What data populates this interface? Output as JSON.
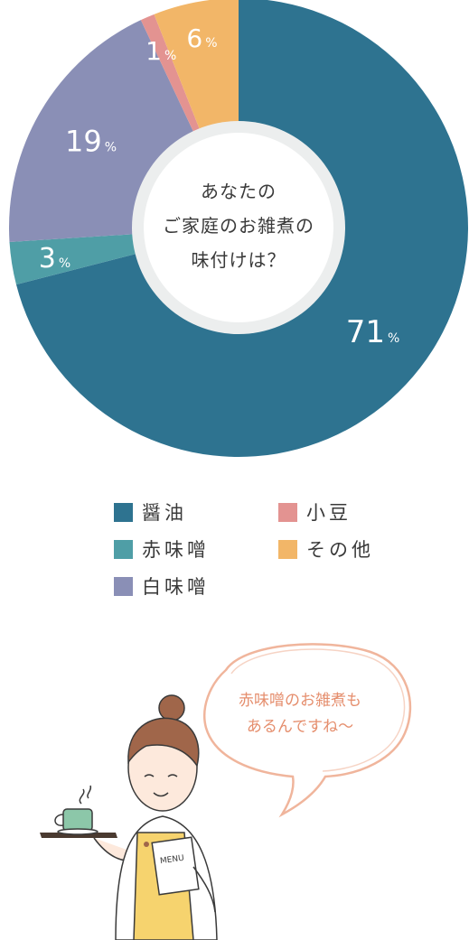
{
  "chart_data": {
    "type": "pie",
    "title": "あなたのご家庭のお雑煮の味付けは？",
    "title_lines": [
      "あなたの",
      "ご家庭のお雑煮の",
      "味付けは？"
    ],
    "unit": "%",
    "slices": [
      {
        "label": "醤油",
        "value": 71,
        "color": "#2e7390"
      },
      {
        "label": "赤味噌",
        "value": 3,
        "color": "#4f9ea6"
      },
      {
        "label": "白味噌",
        "value": 19,
        "color": "#8a8fb6"
      },
      {
        "label": "小豆",
        "value": 1,
        "color": "#e39391"
      },
      {
        "label": "その他",
        "value": 6,
        "color": "#f2b668"
      }
    ],
    "legend_position": "bottom"
  },
  "legend": [
    {
      "label": "醤油",
      "color": "#2e7390"
    },
    {
      "label": "小豆",
      "color": "#e39391"
    },
    {
      "label": "赤味噌",
      "color": "#4f9ea6"
    },
    {
      "label": "その他",
      "color": "#f2b668"
    },
    {
      "label": "白味噌",
      "color": "#8a8fb6"
    }
  ],
  "speech_bubble": {
    "lines": [
      "赤味噌のお雑煮も",
      "あるんですね～"
    ],
    "text_color": "#e58e6d"
  },
  "illustration": {
    "menu_card_text": "MENU",
    "icons": [
      "woman-waitress-icon",
      "coffee-cup-icon",
      "menu-card-icon"
    ]
  }
}
